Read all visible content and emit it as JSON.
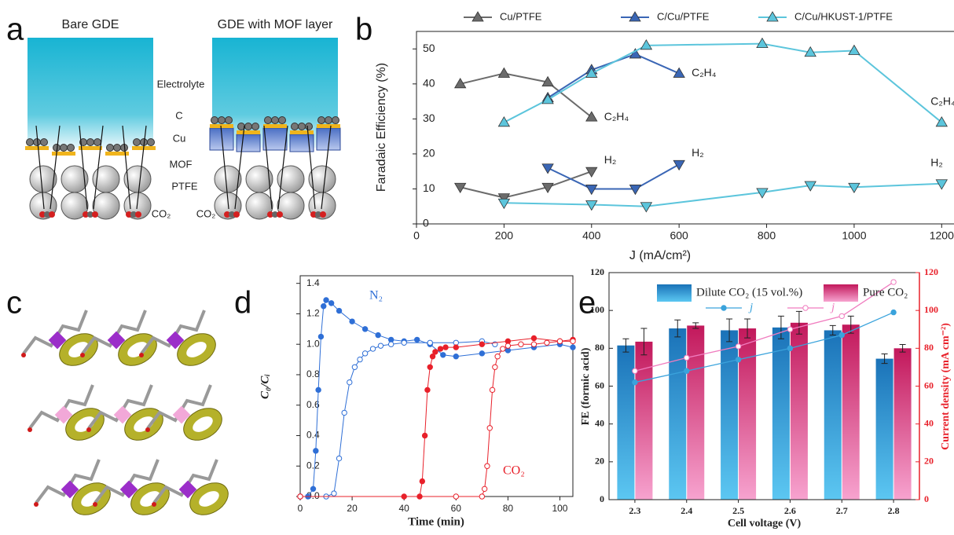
{
  "panel_labels": [
    "a",
    "b",
    "c",
    "d",
    "e"
  ],
  "diagram_a": {
    "titles": [
      "Bare GDE",
      "GDE with MOF layer"
    ],
    "labels": [
      "Electrolyte",
      "C",
      "Cu",
      "MOF",
      "PTFE"
    ],
    "co2_labels": [
      "CO₂",
      "CO₂"
    ]
  },
  "chart_data": [
    {
      "type": "line",
      "xlabel": "J (mA/cm²)",
      "ylabel": "Faradaic Efficiency (%)",
      "xlim": [
        0,
        1300
      ],
      "ylim": [
        0,
        55
      ],
      "xticks": [
        0,
        200,
        400,
        600,
        800,
        1000,
        1200
      ],
      "yticks": [
        0,
        10,
        20,
        30,
        40,
        50
      ],
      "marker": "triangle",
      "series": [
        {
          "name": "Cu/PTFE",
          "color": "#6b6b6b",
          "labels": [
            "C₂H₄",
            "H₂"
          ],
          "x": [
            100,
            200,
            300,
            400
          ],
          "values": [
            40,
            43,
            40.5,
            30.5
          ],
          "h2_x": [
            100,
            200,
            300,
            400
          ],
          "h2_values": [
            10.5,
            7.5,
            10.5,
            15
          ]
        },
        {
          "name": "C/Cu/PTFE",
          "color": "#3a66b5",
          "labels": [
            "C₂H₄",
            "H₂"
          ],
          "x": [
            300,
            400,
            500,
            600
          ],
          "values": [
            36,
            44,
            48.5,
            43
          ],
          "h2_x": [
            300,
            400,
            500,
            600
          ],
          "h2_values": [
            16,
            10,
            10,
            17
          ]
        },
        {
          "name": "C/Cu/HKUST-1/PTFE",
          "color": "#5cc5dc",
          "labels": [
            "C₂H₄",
            "H₂"
          ],
          "x": [
            200,
            300,
            400,
            525,
            790,
            900,
            1000,
            1200
          ],
          "values": [
            29,
            35.5,
            43,
            51,
            51.5,
            49,
            49.5,
            29
          ],
          "h2_x": [
            200,
            400,
            525,
            790,
            900,
            1000,
            1200
          ],
          "h2_values": [
            6,
            5.5,
            5,
            9,
            11,
            10.5,
            11.5
          ]
        }
      ]
    },
    {
      "type": "line",
      "xlabel": "Time (min)",
      "ylabel": "C₀/Cᵢ",
      "xlim": [
        0,
        105
      ],
      "ylim": [
        0,
        1.45
      ],
      "xticks": [
        0,
        20,
        40,
        60,
        80,
        100
      ],
      "yticks": [
        {
          "value": 0,
          "label": "0.0"
        },
        0.2,
        0.4,
        0.6,
        0.8,
        {
          "value": 1,
          "label": "1.0"
        },
        1.2,
        1.4
      ],
      "marker": "circle",
      "annotations": [
        "N₂",
        "CO₂"
      ],
      "series": [
        {
          "color": "#2f6fd6",
          "filled": true,
          "x": [
            0,
            3,
            5,
            6,
            7,
            8,
            9,
            10,
            12,
            15,
            20,
            25,
            30,
            35,
            40,
            45,
            50,
            55,
            60,
            70,
            80,
            90,
            100,
            105
          ],
          "values": [
            0,
            0,
            0.05,
            0.3,
            0.7,
            1.05,
            1.25,
            1.29,
            1.27,
            1.22,
            1.15,
            1.1,
            1.06,
            1.03,
            1.02,
            1.03,
            1.0,
            0.93,
            0.92,
            0.94,
            0.96,
            0.98,
            1.0,
            0.98
          ]
        },
        {
          "color": "#2f6fd6",
          "filled": false,
          "x": [
            0,
            10,
            13,
            15,
            17,
            19,
            21,
            23,
            25,
            28,
            31,
            35,
            40,
            50,
            60,
            70,
            75
          ],
          "values": [
            0,
            0,
            0.02,
            0.25,
            0.55,
            0.75,
            0.85,
            0.9,
            0.94,
            0.97,
            0.99,
            1.0,
            1.01,
            1.01,
            1.01,
            1.02,
            1.0
          ]
        },
        {
          "color": "#e8202a",
          "filled": true,
          "x": [
            0,
            40,
            46,
            47,
            48,
            49,
            50,
            51,
            52,
            54,
            56,
            60,
            70,
            80,
            90,
            100,
            105
          ],
          "values": [
            0,
            0,
            0,
            0.1,
            0.4,
            0.7,
            0.85,
            0.92,
            0.95,
            0.97,
            0.98,
            0.98,
            1.0,
            1.02,
            1.04,
            1.02,
            1.03
          ]
        },
        {
          "color": "#e8202a",
          "filled": false,
          "x": [
            0,
            60,
            70,
            71,
            72,
            73,
            74,
            75,
            76,
            78,
            80,
            85,
            90,
            95,
            100,
            105
          ],
          "values": [
            0,
            0,
            0,
            0.05,
            0.2,
            0.45,
            0.7,
            0.85,
            0.92,
            0.97,
            0.99,
            1.0,
            1.0,
            1.01,
            1.02,
            1.02
          ]
        }
      ]
    },
    {
      "type": "bar",
      "xlabel": "Cell voltage (V)",
      "ylabel": "FE (formic acid)",
      "y2label": "Current density (mA cm⁻²)",
      "categories": [
        "2.3",
        "2.4",
        "2.5",
        "2.6",
        "2.7",
        "2.8"
      ],
      "ylim": [
        0,
        120
      ],
      "yticks": [
        0,
        20,
        40,
        60,
        80,
        100,
        120
      ],
      "y2lim": [
        0,
        120
      ],
      "y2ticks": [
        0,
        20,
        40,
        60,
        80,
        100,
        120
      ],
      "y2color": "#e8202a",
      "series": [
        {
          "name": "Dilute CO₂ (15 vol.%)",
          "color": "#1a72b8",
          "values": [
            81.5,
            90.5,
            89.5,
            91,
            89.5,
            74.5
          ],
          "errors": [
            3.5,
            4.5,
            6,
            6,
            2.5,
            2.5
          ]
        },
        {
          "name": "Pure CO₂",
          "color": "#c2185b",
          "values": [
            83.5,
            92,
            90.5,
            93.5,
            92.5,
            80
          ],
          "errors": [
            7,
            1.5,
            5,
            6,
            4.5,
            2
          ]
        },
        {
          "name": "j",
          "color": "#3aa3dc",
          "axis": "y2",
          "filled": true,
          "values": [
            62,
            68,
            74,
            80,
            87,
            99
          ]
        },
        {
          "name": "j",
          "color": "#f07cbf",
          "axis": "y2",
          "filled": false,
          "values": [
            68,
            75,
            81,
            90,
            97,
            115
          ]
        }
      ]
    }
  ]
}
